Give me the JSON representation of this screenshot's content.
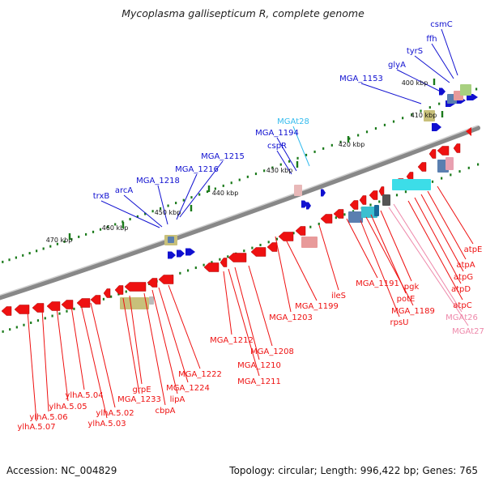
{
  "title": "Mycoplasma gallisepticum R, complete genome",
  "footer": {
    "accession": "Accession: NC_004829",
    "summary": "Topology: circular; Length: 996,422 bp; Genes: 765"
  },
  "colors": {
    "background": "#ffffff",
    "backbone": "#888888",
    "forward_gene": "#1010d0",
    "reverse_gene": "#ee1111",
    "trna_label": "#33bbee",
    "pink_label": "#ee88aa",
    "tick": "#1a7a1a"
  },
  "ticks": [
    "400 kbp",
    "410 kbp",
    "420 kbp",
    "430 kbp",
    "440 kbp",
    "450 kbp",
    "460 kbp",
    "470 kbp"
  ],
  "labels_top": [
    "csmC",
    "ffh",
    "tyrS",
    "glyA",
    "MGA_1153",
    "MGAt28",
    "MGA_1194",
    "cspR",
    "MGA_1215",
    "MGA_1216",
    "MGA_1218",
    "arcA",
    "trxB"
  ],
  "labels_bottom": [
    "atpE",
    "atpA",
    "atpG",
    "atpD",
    "atpC",
    "MGAt26",
    "MGAt27",
    "pgk",
    "MGA_1191",
    "potE",
    "MGA_1189",
    "rpsU",
    "ileS",
    "MGA_1199",
    "MGA_1203",
    "MGA_1212",
    "MGA_1208",
    "MGA_1210",
    "MGA_1211",
    "MGA_1222",
    "MGA_1224",
    "lipA",
    "cbpA",
    "grpE",
    "MGA_1233",
    "ylhA.5.04",
    "ylhA.5.05",
    "ylhA.5.06",
    "ylhA.5.07",
    "ylhA.5.02",
    "ylhA.5.03"
  ]
}
